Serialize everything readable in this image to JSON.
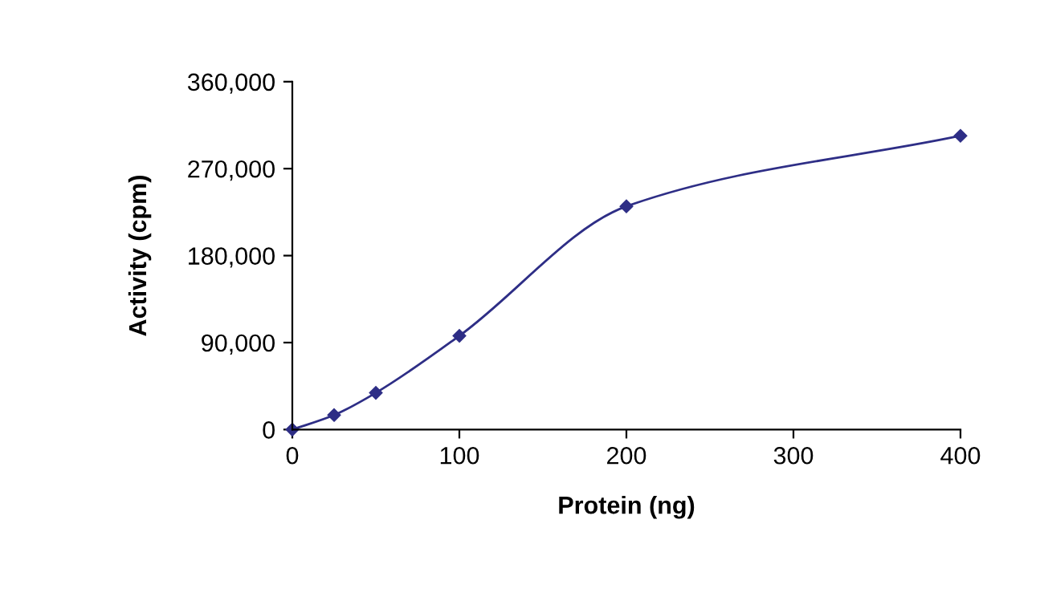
{
  "chart_data": {
    "type": "line",
    "xlabel": "Protein (ng)",
    "ylabel": "Activity (cpm)",
    "x": [
      0,
      25,
      50,
      100,
      200,
      400
    ],
    "series": [
      {
        "color": "#2e2e86",
        "values": [
          0,
          15000,
          38000,
          97000,
          231000,
          304000
        ]
      }
    ],
    "xlim": [
      0,
      400
    ],
    "xticks": [
      0,
      100,
      200,
      300,
      400
    ],
    "ylim": [
      0,
      360000
    ],
    "yticks": [
      {
        "value": 0,
        "label": "0"
      },
      {
        "value": 90000,
        "label": "90,000"
      },
      {
        "value": 180000,
        "label": "180,000"
      },
      {
        "value": 270000,
        "label": "270,000"
      },
      {
        "value": 360000,
        "label": "360,000"
      }
    ],
    "marker": "diamond",
    "line_style": "solid",
    "grid": false,
    "legend": false
  }
}
